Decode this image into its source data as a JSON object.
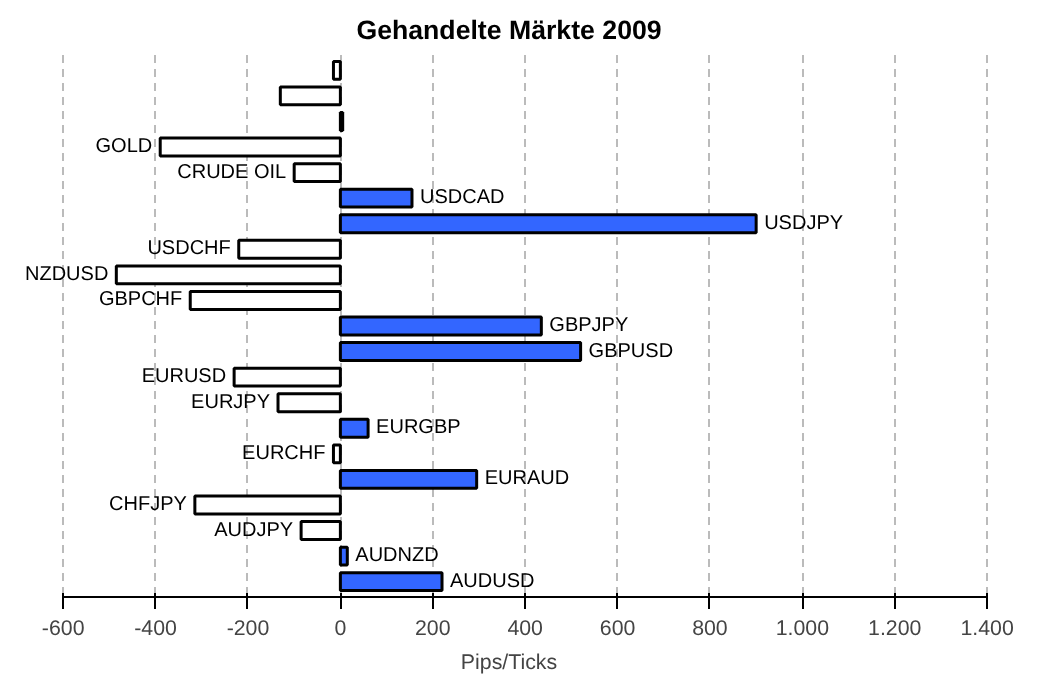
{
  "chart_data": {
    "type": "bar",
    "orientation": "horizontal",
    "title": "Gehandelte Märkte 2009",
    "xlabel": "Pips/Ticks",
    "categories": [
      null,
      null,
      null,
      "GOLD",
      "CRUDE OIL",
      "USDCAD",
      "USDJPY",
      "USDCHF",
      "NZDUSD",
      "GBPCHF",
      "GBPJPY",
      "GBPUSD",
      "EURUSD",
      "EURJPY",
      "EURGBP",
      "EURCHF",
      "EURAUD",
      "CHFJPY",
      "AUDJPY",
      "AUDNZD",
      "AUDUSD"
    ],
    "values": [
      -15,
      -130,
      5,
      -390,
      -100,
      155,
      900,
      -220,
      -485,
      -325,
      435,
      520,
      -230,
      -135,
      60,
      -15,
      295,
      -315,
      -85,
      15,
      220
    ],
    "colors": [
      "#ffffff",
      "#ffffff",
      "#3366ff",
      "#ffffff",
      "#ffffff",
      "#3366ff",
      "#3366ff",
      "#ffffff",
      "#ffffff",
      "#ffffff",
      "#3366ff",
      "#3366ff",
      "#ffffff",
      "#ffffff",
      "#3366ff",
      "#ffffff",
      "#3366ff",
      "#ffffff",
      "#ffffff",
      "#3366ff",
      "#3366ff"
    ],
    "xlim": [
      -600,
      1400
    ],
    "xticks": [
      -600,
      -400,
      -200,
      0,
      200,
      400,
      600,
      800,
      {
        "value": 1000,
        "label": "1.000"
      },
      {
        "value": 1200,
        "label": "1.200"
      },
      {
        "value": 1400,
        "label": "1.400"
      }
    ],
    "grid": "x"
  }
}
